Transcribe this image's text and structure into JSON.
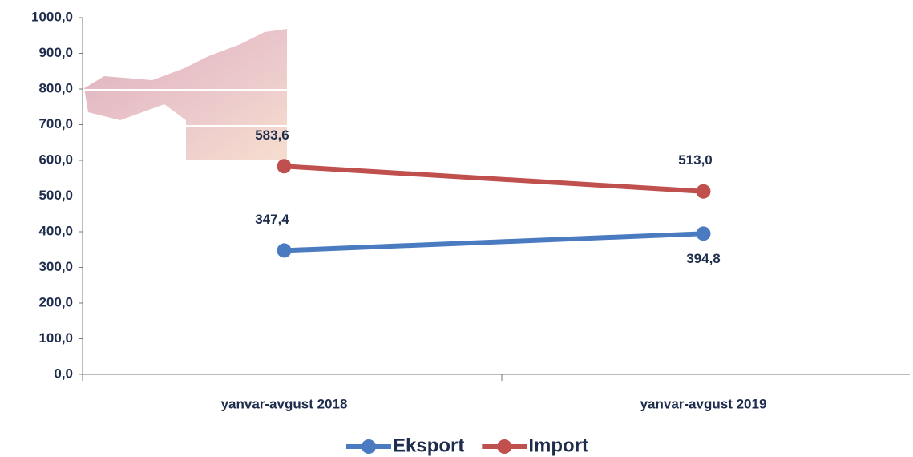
{
  "chart_data": {
    "type": "line",
    "categories": [
      "yanvar-avgust 2018",
      "yanvar-avgust 2019"
    ],
    "series": [
      {
        "name": "Eksport",
        "color": "#4a7bc0",
        "values": [
          347.4,
          394.8
        ],
        "value_labels": [
          "347,4",
          "394,8"
        ]
      },
      {
        "name": "Import",
        "color": "#c0504d",
        "values": [
          583.6,
          513.0
        ],
        "value_labels": [
          "583,6",
          "513,0"
        ]
      }
    ],
    "ylim": [
      0,
      1000
    ],
    "yticks": [
      {
        "value": 0,
        "label": "0,0"
      },
      {
        "value": 100,
        "label": "100,0"
      },
      {
        "value": 200,
        "label": "200,0"
      },
      {
        "value": 300,
        "label": "300,0"
      },
      {
        "value": 400,
        "label": "400,0"
      },
      {
        "value": 500,
        "label": "500,0"
      },
      {
        "value": 600,
        "label": "600,0"
      },
      {
        "value": 700,
        "label": "700,0"
      },
      {
        "value": 800,
        "label": "800,0"
      },
      {
        "value": 900,
        "label": "900,0"
      },
      {
        "value": 1000,
        "label": "1000,0"
      }
    ],
    "grid": false,
    "legend": "bottom"
  }
}
